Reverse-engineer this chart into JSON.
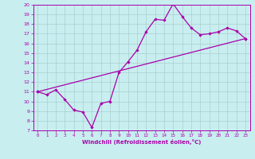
{
  "xlabel": "Windchill (Refroidissement éolien,°C)",
  "background_color": "#c8eef0",
  "grid_color": "#aacfcf",
  "line_color": "#aa00aa",
  "xlim": [
    -0.5,
    23.5
  ],
  "ylim": [
    7,
    20
  ],
  "xticks": [
    0,
    1,
    2,
    3,
    4,
    5,
    6,
    7,
    8,
    9,
    10,
    11,
    12,
    13,
    14,
    15,
    16,
    17,
    18,
    19,
    20,
    21,
    22,
    23
  ],
  "yticks": [
    7,
    8,
    9,
    10,
    11,
    12,
    13,
    14,
    15,
    16,
    17,
    18,
    19,
    20
  ],
  "line1_x": [
    0,
    1,
    2,
    3,
    4,
    5,
    6,
    7,
    8,
    9,
    10,
    11,
    12,
    13,
    14,
    15,
    16,
    17,
    18,
    19,
    20,
    21,
    22,
    23
  ],
  "line1_y": [
    11.0,
    10.7,
    11.2,
    10.2,
    9.1,
    8.9,
    7.3,
    9.8,
    10.0,
    13.0,
    14.1,
    15.3,
    17.2,
    18.5,
    18.4,
    20.1,
    18.8,
    17.6,
    16.9,
    17.0,
    17.2,
    17.6,
    17.3,
    16.5
  ],
  "line2_x": [
    0,
    23
  ],
  "line2_y": [
    11.0,
    16.5
  ]
}
